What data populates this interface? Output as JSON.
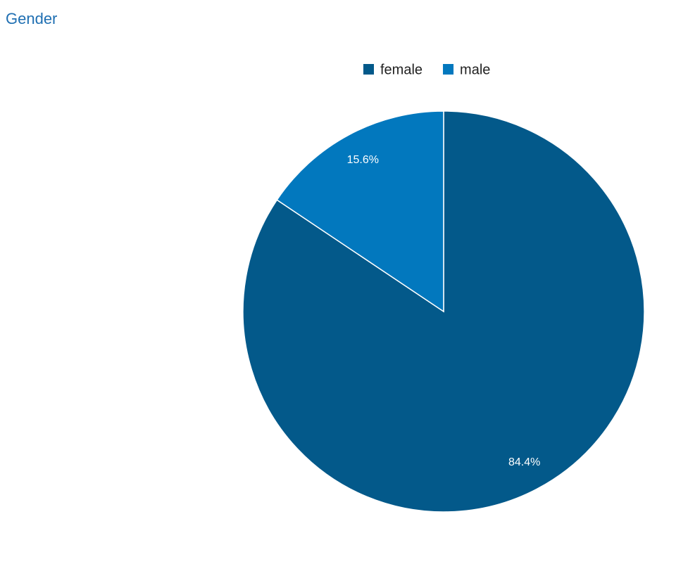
{
  "chart_data": {
    "type": "pie",
    "title": "Gender",
    "categories": [
      "female",
      "male"
    ],
    "values": [
      84.4,
      15.6
    ],
    "value_labels": [
      "84.4%",
      "15.6%"
    ],
    "colors": [
      "#03598a",
      "#0278be"
    ],
    "legend": "top"
  }
}
